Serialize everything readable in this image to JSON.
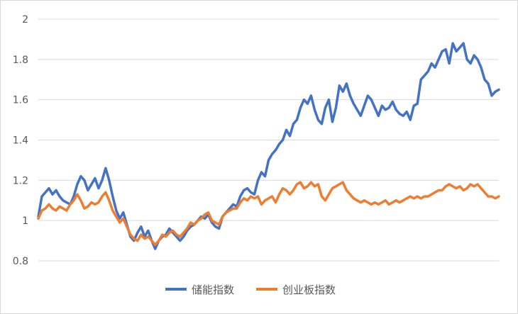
{
  "chart_data": {
    "type": "line",
    "title": "",
    "xlabel": "",
    "ylabel": "",
    "ylim": [
      0.8,
      2.0
    ],
    "yticks": [
      "0.8",
      "1",
      "1.2",
      "1.4",
      "1.6",
      "1.8",
      "2"
    ],
    "grid": true,
    "legend_position": "bottom",
    "series": [
      {
        "name": "储能指数",
        "color": "#4472C4",
        "values": [
          1.02,
          1.12,
          1.14,
          1.16,
          1.13,
          1.15,
          1.12,
          1.1,
          1.09,
          1.08,
          1.12,
          1.18,
          1.22,
          1.2,
          1.15,
          1.18,
          1.21,
          1.16,
          1.2,
          1.26,
          1.2,
          1.12,
          1.05,
          1.01,
          1.04,
          0.98,
          0.92,
          0.9,
          0.94,
          0.97,
          0.92,
          0.95,
          0.9,
          0.86,
          0.9,
          0.92,
          0.93,
          0.96,
          0.94,
          0.92,
          0.9,
          0.92,
          0.95,
          0.97,
          0.98,
          1.0,
          1.02,
          1.01,
          1.03,
          0.99,
          0.97,
          0.96,
          1.02,
          1.04,
          1.06,
          1.08,
          1.07,
          1.12,
          1.15,
          1.16,
          1.14,
          1.13,
          1.2,
          1.24,
          1.22,
          1.3,
          1.33,
          1.35,
          1.38,
          1.4,
          1.45,
          1.42,
          1.48,
          1.5,
          1.56,
          1.6,
          1.58,
          1.62,
          1.55,
          1.5,
          1.48,
          1.56,
          1.6,
          1.49,
          1.56,
          1.67,
          1.64,
          1.68,
          1.62,
          1.58,
          1.55,
          1.52,
          1.57,
          1.62,
          1.6,
          1.56,
          1.52,
          1.57,
          1.55,
          1.56,
          1.59,
          1.55,
          1.53,
          1.52,
          1.54,
          1.5,
          1.57,
          1.58,
          1.7,
          1.72,
          1.74,
          1.78,
          1.76,
          1.8,
          1.84,
          1.85,
          1.78,
          1.88,
          1.84,
          1.86,
          1.88,
          1.8,
          1.78,
          1.82,
          1.8,
          1.76,
          1.7,
          1.68,
          1.62,
          1.64,
          1.65
        ]
      },
      {
        "name": "创业板指数",
        "color": "#ED7D31",
        "values": [
          1.01,
          1.05,
          1.06,
          1.08,
          1.06,
          1.05,
          1.07,
          1.06,
          1.05,
          1.08,
          1.1,
          1.13,
          1.1,
          1.06,
          1.07,
          1.09,
          1.08,
          1.09,
          1.12,
          1.14,
          1.1,
          1.05,
          1.02,
          0.99,
          1.01,
          0.97,
          0.93,
          0.91,
          0.9,
          0.93,
          0.91,
          0.92,
          0.9,
          0.88,
          0.9,
          0.93,
          0.92,
          0.94,
          0.95,
          0.93,
          0.92,
          0.94,
          0.96,
          0.99,
          0.98,
          1.0,
          1.01,
          1.03,
          1.04,
          1.0,
          0.99,
          0.98,
          1.02,
          1.04,
          1.05,
          1.06,
          1.06,
          1.09,
          1.11,
          1.1,
          1.12,
          1.11,
          1.12,
          1.08,
          1.1,
          1.11,
          1.12,
          1.09,
          1.13,
          1.16,
          1.15,
          1.13,
          1.15,
          1.18,
          1.19,
          1.16,
          1.17,
          1.19,
          1.17,
          1.18,
          1.12,
          1.1,
          1.13,
          1.16,
          1.17,
          1.18,
          1.19,
          1.15,
          1.13,
          1.11,
          1.1,
          1.09,
          1.1,
          1.09,
          1.08,
          1.09,
          1.08,
          1.09,
          1.1,
          1.08,
          1.09,
          1.1,
          1.09,
          1.1,
          1.11,
          1.12,
          1.11,
          1.12,
          1.11,
          1.12,
          1.12,
          1.13,
          1.14,
          1.15,
          1.15,
          1.17,
          1.18,
          1.17,
          1.16,
          1.17,
          1.15,
          1.16,
          1.18,
          1.17,
          1.18,
          1.16,
          1.14,
          1.12,
          1.12,
          1.11,
          1.12
        ]
      }
    ]
  }
}
